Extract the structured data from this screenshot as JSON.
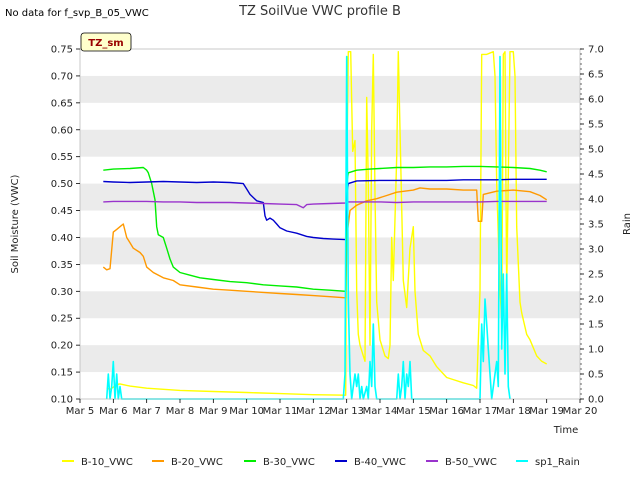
{
  "header": {
    "no_data_note": "No data for f_svp_B_05_VWC",
    "site_tag": "TZ_sm"
  },
  "colors": {
    "B-10_VWC": "#ffff00",
    "B-20_VWC": "#ff9900",
    "B-30_VWC": "#00ee00",
    "B-40_VWC": "#0000cc",
    "B-50_VWC": "#9933cc",
    "sp1_Rain": "#00ffff",
    "band": "#ebebeb",
    "tag_bg": "#ffffcc",
    "tag_text": "#990000"
  },
  "chart_data": {
    "type": "line",
    "title": "TZ SoilVue VWC profile B",
    "xlabel": "Time",
    "ylabel": "Soil Moisture (VWC)",
    "y2label": "Rain",
    "xlim": [
      5,
      20
    ],
    "ylim": [
      0.1,
      0.75
    ],
    "y2lim": [
      0.0,
      7.0
    ],
    "x_ticks": [
      "Mar 5",
      "Mar 6",
      "Mar 7",
      "Mar 8",
      "Mar 9",
      "Mar 10",
      "Mar 11",
      "Mar 12",
      "Mar 13",
      "Mar 14",
      "Mar 15",
      "Mar 16",
      "Mar 17",
      "Mar 18",
      "Mar 19",
      "Mar 20"
    ],
    "y_ticks": [
      "0.10",
      "0.15",
      "0.20",
      "0.25",
      "0.30",
      "0.35",
      "0.40",
      "0.45",
      "0.50",
      "0.55",
      "0.60",
      "0.65",
      "0.70",
      "0.75"
    ],
    "y2_ticks": [
      "0.0",
      "0.5",
      "1.0",
      "1.5",
      "2.0",
      "2.5",
      "3.0",
      "3.5",
      "4.0",
      "4.5",
      "5.0",
      "5.5",
      "6.0",
      "6.5",
      "7.0"
    ],
    "grid": "alternating horizontal bands",
    "legend_position": "bottom",
    "series": [
      {
        "name": "B-10_VWC",
        "axis": "left",
        "points": [
          [
            5.8,
            0.12
          ],
          [
            5.9,
            0.118
          ],
          [
            6.0,
            0.122
          ],
          [
            6.1,
            0.127
          ],
          [
            6.2,
            0.128
          ],
          [
            6.5,
            0.124
          ],
          [
            7.0,
            0.12
          ],
          [
            8.0,
            0.116
          ],
          [
            9.0,
            0.114
          ],
          [
            10.0,
            0.112
          ],
          [
            11.0,
            0.11
          ],
          [
            12.0,
            0.108
          ],
          [
            12.97,
            0.107
          ],
          [
            13.0,
            0.5
          ],
          [
            13.05,
            0.745
          ],
          [
            13.12,
            0.745
          ],
          [
            13.18,
            0.56
          ],
          [
            13.25,
            0.58
          ],
          [
            13.3,
            0.3
          ],
          [
            13.35,
            0.22
          ],
          [
            13.4,
            0.2
          ],
          [
            13.5,
            0.18
          ],
          [
            13.55,
            0.17
          ],
          [
            13.6,
            0.66
          ],
          [
            13.65,
            0.5
          ],
          [
            13.7,
            0.2
          ],
          [
            13.75,
            0.6
          ],
          [
            13.8,
            0.74
          ],
          [
            13.85,
            0.48
          ],
          [
            13.9,
            0.28
          ],
          [
            14.0,
            0.21
          ],
          [
            14.15,
            0.18
          ],
          [
            14.25,
            0.175
          ],
          [
            14.3,
            0.2
          ],
          [
            14.35,
            0.4
          ],
          [
            14.4,
            0.32
          ],
          [
            14.5,
            0.55
          ],
          [
            14.55,
            0.745
          ],
          [
            14.6,
            0.6
          ],
          [
            14.7,
            0.32
          ],
          [
            14.8,
            0.27
          ],
          [
            14.9,
            0.38
          ],
          [
            15.0,
            0.42
          ],
          [
            15.05,
            0.3
          ],
          [
            15.15,
            0.22
          ],
          [
            15.3,
            0.19
          ],
          [
            15.5,
            0.18
          ],
          [
            15.7,
            0.16
          ],
          [
            16.0,
            0.14
          ],
          [
            16.5,
            0.13
          ],
          [
            16.8,
            0.125
          ],
          [
            16.9,
            0.12
          ],
          [
            17.0,
            0.3
          ],
          [
            17.05,
            0.74
          ],
          [
            17.2,
            0.74
          ],
          [
            17.4,
            0.745
          ],
          [
            17.45,
            0.7
          ],
          [
            17.5,
            0.5
          ],
          [
            17.6,
            0.3
          ],
          [
            17.65,
            0.25
          ],
          [
            17.7,
            0.74
          ],
          [
            17.75,
            0.745
          ],
          [
            17.8,
            0.3
          ],
          [
            17.9,
            0.745
          ],
          [
            18.0,
            0.745
          ],
          [
            18.05,
            0.7
          ],
          [
            18.1,
            0.42
          ],
          [
            18.2,
            0.28
          ],
          [
            18.25,
            0.26
          ],
          [
            18.4,
            0.22
          ],
          [
            18.5,
            0.21
          ],
          [
            18.7,
            0.18
          ],
          [
            18.85,
            0.17
          ],
          [
            19.0,
            0.165
          ]
        ]
      },
      {
        "name": "B-20_VWC",
        "axis": "left",
        "points": [
          [
            5.7,
            0.345
          ],
          [
            5.8,
            0.34
          ],
          [
            5.9,
            0.342
          ],
          [
            6.0,
            0.41
          ],
          [
            6.1,
            0.415
          ],
          [
            6.2,
            0.42
          ],
          [
            6.3,
            0.425
          ],
          [
            6.4,
            0.4
          ],
          [
            6.5,
            0.39
          ],
          [
            6.6,
            0.38
          ],
          [
            6.8,
            0.372
          ],
          [
            6.9,
            0.365
          ],
          [
            7.0,
            0.345
          ],
          [
            7.2,
            0.335
          ],
          [
            7.5,
            0.325
          ],
          [
            7.8,
            0.32
          ],
          [
            8.0,
            0.312
          ],
          [
            8.5,
            0.308
          ],
          [
            9.0,
            0.304
          ],
          [
            9.5,
            0.302
          ],
          [
            10.0,
            0.3
          ],
          [
            10.5,
            0.298
          ],
          [
            11.0,
            0.296
          ],
          [
            11.5,
            0.294
          ],
          [
            12.0,
            0.292
          ],
          [
            12.5,
            0.29
          ],
          [
            12.97,
            0.288
          ],
          [
            13.0,
            0.4
          ],
          [
            13.1,
            0.45
          ],
          [
            13.3,
            0.46
          ],
          [
            13.6,
            0.468
          ],
          [
            13.9,
            0.472
          ],
          [
            14.2,
            0.478
          ],
          [
            14.5,
            0.484
          ],
          [
            15.0,
            0.488
          ],
          [
            15.2,
            0.492
          ],
          [
            15.5,
            0.49
          ],
          [
            16.0,
            0.49
          ],
          [
            16.5,
            0.488
          ],
          [
            16.9,
            0.488
          ],
          [
            16.95,
            0.43
          ],
          [
            17.05,
            0.43
          ],
          [
            17.1,
            0.48
          ],
          [
            17.5,
            0.486
          ],
          [
            18.0,
            0.488
          ],
          [
            18.5,
            0.485
          ],
          [
            18.8,
            0.478
          ],
          [
            19.0,
            0.47
          ]
        ]
      },
      {
        "name": "B-30_VWC",
        "axis": "left",
        "points": [
          [
            5.7,
            0.525
          ],
          [
            6.0,
            0.527
          ],
          [
            6.5,
            0.528
          ],
          [
            6.9,
            0.53
          ],
          [
            7.0,
            0.525
          ],
          [
            7.05,
            0.52
          ],
          [
            7.15,
            0.5
          ],
          [
            7.25,
            0.47
          ],
          [
            7.3,
            0.42
          ],
          [
            7.35,
            0.405
          ],
          [
            7.5,
            0.4
          ],
          [
            7.6,
            0.38
          ],
          [
            7.7,
            0.36
          ],
          [
            7.8,
            0.345
          ],
          [
            8.0,
            0.335
          ],
          [
            8.3,
            0.33
          ],
          [
            8.6,
            0.325
          ],
          [
            9.0,
            0.322
          ],
          [
            9.5,
            0.318
          ],
          [
            10.0,
            0.316
          ],
          [
            10.5,
            0.312
          ],
          [
            11.0,
            0.31
          ],
          [
            11.5,
            0.308
          ],
          [
            12.0,
            0.304
          ],
          [
            12.5,
            0.302
          ],
          [
            12.97,
            0.3
          ],
          [
            13.0,
            0.5
          ],
          [
            13.05,
            0.52
          ],
          [
            13.3,
            0.525
          ],
          [
            13.7,
            0.527
          ],
          [
            14.0,
            0.528
          ],
          [
            14.5,
            0.53
          ],
          [
            15.0,
            0.53
          ],
          [
            15.5,
            0.531
          ],
          [
            16.0,
            0.531
          ],
          [
            16.5,
            0.532
          ],
          [
            17.0,
            0.532
          ],
          [
            17.5,
            0.531
          ],
          [
            18.0,
            0.53
          ],
          [
            18.5,
            0.528
          ],
          [
            18.8,
            0.525
          ],
          [
            19.0,
            0.522
          ]
        ]
      },
      {
        "name": "B-40_VWC",
        "axis": "left",
        "points": [
          [
            5.7,
            0.504
          ],
          [
            6.0,
            0.503
          ],
          [
            6.5,
            0.502
          ],
          [
            7.0,
            0.503
          ],
          [
            7.5,
            0.504
          ],
          [
            8.0,
            0.503
          ],
          [
            8.5,
            0.502
          ],
          [
            9.0,
            0.503
          ],
          [
            9.5,
            0.502
          ],
          [
            9.9,
            0.5
          ],
          [
            10.0,
            0.49
          ],
          [
            10.1,
            0.48
          ],
          [
            10.3,
            0.468
          ],
          [
            10.5,
            0.465
          ],
          [
            10.55,
            0.44
          ],
          [
            10.6,
            0.432
          ],
          [
            10.7,
            0.436
          ],
          [
            10.8,
            0.432
          ],
          [
            10.9,
            0.425
          ],
          [
            11.0,
            0.418
          ],
          [
            11.2,
            0.412
          ],
          [
            11.5,
            0.408
          ],
          [
            11.8,
            0.402
          ],
          [
            12.0,
            0.4
          ],
          [
            12.3,
            0.398
          ],
          [
            12.6,
            0.397
          ],
          [
            12.97,
            0.396
          ],
          [
            13.0,
            0.48
          ],
          [
            13.05,
            0.5
          ],
          [
            13.3,
            0.505
          ],
          [
            14.0,
            0.506
          ],
          [
            14.5,
            0.506
          ],
          [
            15.0,
            0.506
          ],
          [
            15.5,
            0.506
          ],
          [
            16.0,
            0.506
          ],
          [
            16.5,
            0.507
          ],
          [
            17.0,
            0.507
          ],
          [
            17.5,
            0.507
          ],
          [
            18.0,
            0.508
          ],
          [
            18.5,
            0.508
          ],
          [
            19.0,
            0.508
          ]
        ]
      },
      {
        "name": "B-50_VWC",
        "axis": "left",
        "points": [
          [
            5.7,
            0.466
          ],
          [
            6.0,
            0.467
          ],
          [
            6.5,
            0.467
          ],
          [
            7.0,
            0.467
          ],
          [
            7.5,
            0.466
          ],
          [
            8.0,
            0.466
          ],
          [
            8.5,
            0.465
          ],
          [
            9.0,
            0.465
          ],
          [
            9.5,
            0.465
          ],
          [
            10.0,
            0.464
          ],
          [
            10.5,
            0.463
          ],
          [
            11.0,
            0.462
          ],
          [
            11.5,
            0.461
          ],
          [
            11.7,
            0.455
          ],
          [
            11.8,
            0.461
          ],
          [
            12.0,
            0.462
          ],
          [
            12.5,
            0.463
          ],
          [
            12.97,
            0.464
          ],
          [
            13.0,
            0.466
          ],
          [
            13.5,
            0.466
          ],
          [
            14.0,
            0.466
          ],
          [
            14.5,
            0.465
          ],
          [
            15.0,
            0.466
          ],
          [
            15.5,
            0.466
          ],
          [
            16.0,
            0.466
          ],
          [
            16.5,
            0.466
          ],
          [
            17.0,
            0.466
          ],
          [
            17.5,
            0.467
          ],
          [
            18.0,
            0.467
          ],
          [
            18.5,
            0.467
          ],
          [
            19.0,
            0.467
          ]
        ]
      },
      {
        "name": "sp1_Rain",
        "axis": "right",
        "points": [
          [
            5.8,
            0.0
          ],
          [
            5.85,
            0.5
          ],
          [
            5.9,
            0.0
          ],
          [
            5.95,
            0.25
          ],
          [
            6.0,
            0.75
          ],
          [
            6.05,
            0.0
          ],
          [
            6.1,
            0.5
          ],
          [
            6.15,
            0.0
          ],
          [
            6.2,
            0.25
          ],
          [
            6.25,
            0.0
          ],
          [
            12.9,
            0.0
          ],
          [
            12.95,
            0.5
          ],
          [
            13.0,
            6.85
          ],
          [
            13.05,
            2.0
          ],
          [
            13.1,
            0.5
          ],
          [
            13.15,
            0.0
          ],
          [
            13.2,
            0.25
          ],
          [
            13.25,
            0.5
          ],
          [
            13.3,
            0.25
          ],
          [
            13.35,
            0.5
          ],
          [
            13.4,
            0.0
          ],
          [
            13.45,
            0.25
          ],
          [
            13.5,
            0.0
          ],
          [
            13.6,
            0.25
          ],
          [
            13.65,
            0.0
          ],
          [
            13.7,
            0.75
          ],
          [
            13.75,
            0.25
          ],
          [
            13.8,
            1.5
          ],
          [
            13.85,
            0.25
          ],
          [
            13.9,
            0.0
          ],
          [
            14.5,
            0.0
          ],
          [
            14.55,
            0.5
          ],
          [
            14.6,
            0.0
          ],
          [
            14.65,
            0.25
          ],
          [
            14.7,
            0.75
          ],
          [
            14.75,
            0.0
          ],
          [
            14.8,
            0.5
          ],
          [
            14.85,
            0.25
          ],
          [
            14.9,
            0.75
          ],
          [
            14.95,
            0.0
          ],
          [
            17.0,
            0.0
          ],
          [
            17.05,
            1.5
          ],
          [
            17.1,
            0.75
          ],
          [
            17.15,
            2.0
          ],
          [
            17.2,
            1.5
          ],
          [
            17.25,
            1.0
          ],
          [
            17.3,
            0.5
          ],
          [
            17.35,
            0.0
          ],
          [
            17.45,
            0.5
          ],
          [
            17.5,
            0.75
          ],
          [
            17.55,
            0.25
          ],
          [
            17.6,
            6.85
          ],
          [
            17.65,
            1.0
          ],
          [
            17.7,
            2.5
          ],
          [
            17.75,
            0.5
          ],
          [
            17.8,
            2.5
          ],
          [
            17.85,
            0.25
          ],
          [
            17.9,
            0.0
          ]
        ]
      }
    ]
  }
}
